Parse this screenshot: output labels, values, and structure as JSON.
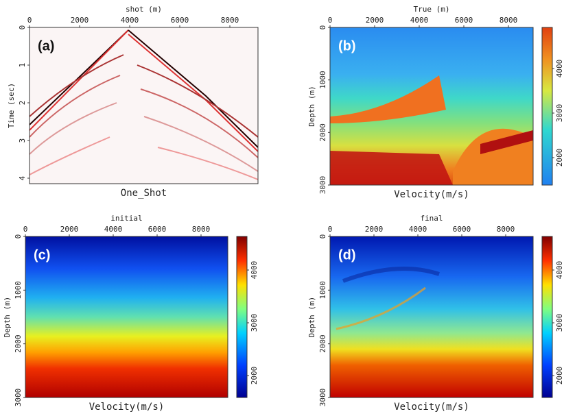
{
  "panels": [
    {
      "tag": "(a)",
      "title": "shot (m)",
      "bottom_label": "One_Shot",
      "y_label": "Time (sec)",
      "x_ticks": [
        "0",
        "2000",
        "4000",
        "6000",
        "8000"
      ],
      "y_ticks": [
        "0",
        "1",
        "2",
        "3",
        "4"
      ]
    },
    {
      "tag": "(b)",
      "title": "True (m)",
      "bottom_label": "Velocity(m/s)",
      "y_label": "Depth (m)",
      "x_ticks": [
        "0",
        "2000",
        "4000",
        "6000",
        "8000"
      ],
      "y_ticks": [
        "0",
        "1000",
        "2000",
        "3000"
      ],
      "colorbar_ticks": [
        "2000",
        "3000",
        "4000"
      ]
    },
    {
      "tag": "(c)",
      "title": "initial",
      "bottom_label": "Velocity(m/s)",
      "y_label": "Depth (m)",
      "x_ticks": [
        "0",
        "2000",
        "4000",
        "6000",
        "8000"
      ],
      "y_ticks": [
        "0",
        "1000",
        "2000",
        "3000"
      ],
      "colorbar_ticks": [
        "2000",
        "3000",
        "4000"
      ]
    },
    {
      "tag": "(d)",
      "title": "final",
      "bottom_label": "Velocity(m/s)",
      "y_label": "Depth (m)",
      "x_ticks": [
        "0",
        "2000",
        "4000",
        "6000",
        "8000"
      ],
      "y_ticks": [
        "0",
        "1000",
        "2000",
        "3000"
      ],
      "colorbar_ticks": [
        "2000",
        "3000",
        "4000"
      ]
    }
  ]
}
